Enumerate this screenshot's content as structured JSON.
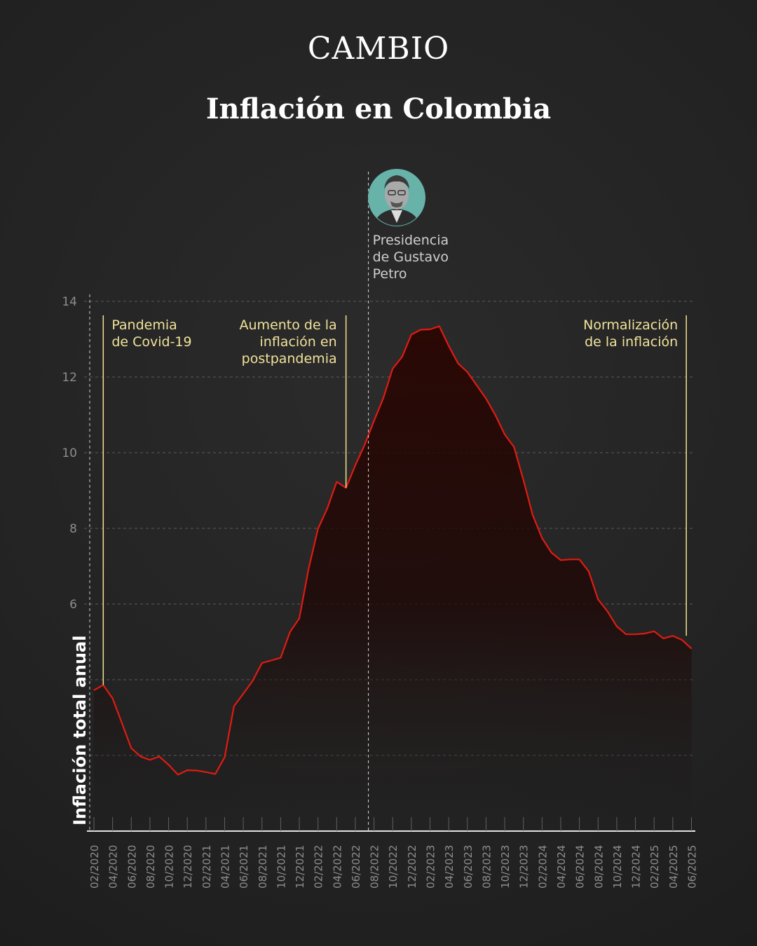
{
  "brand": "CAMBIO",
  "title": "Inflación en Colombia",
  "colors": {
    "background": "#242424",
    "line": "#e01b12",
    "annotation_line": "#f3e38c",
    "annotation_text": "#f1e29a",
    "tick_text": "#8d8d8d",
    "grid": "#5a5a5a",
    "avatar_bg": "#67b3aa"
  },
  "icons": {
    "petro_portrait": "portrait-icon"
  },
  "annotations": {
    "covid": [
      "Pandemia",
      "de Covid-19"
    ],
    "postpandemia": [
      "Aumento de la",
      "inflación en",
      "postpandemia"
    ],
    "normalizacion": [
      "Normalización",
      "de la inflación"
    ],
    "petro": [
      "Presidencia",
      "de Gustavo",
      "Petro"
    ]
  },
  "chart_data": {
    "type": "area",
    "title": "Inflación en Colombia",
    "xlabel": "",
    "ylabel": "Inflación total anual",
    "ylim": [
      0,
      14
    ],
    "grid": true,
    "yticks": [
      14,
      12,
      10,
      8,
      6
    ],
    "x_tick_labels": [
      "02/2020",
      "04/2020",
      "06/2020",
      "08/2020",
      "10/2020",
      "12/2020",
      "02/2021",
      "04/2021",
      "06/2021",
      "08/2021",
      "10/2021",
      "12/2021",
      "02/2022",
      "04/2022",
      "06/2022",
      "08/2022",
      "10/2022",
      "12/2022",
      "02/2023",
      "04/2023",
      "06/2023",
      "08/2023",
      "10/2023",
      "12/2023",
      "02/2024",
      "04/2024",
      "06/2024",
      "08/2024",
      "10/2024",
      "12/2024",
      "02/2025",
      "04/2025",
      "06/2025"
    ],
    "series": [
      {
        "x_start": "02/2020",
        "frequency": "monthly",
        "values": [
          3.72,
          3.86,
          3.51,
          2.85,
          2.19,
          1.97,
          1.88,
          1.97,
          1.75,
          1.49,
          1.61,
          1.6,
          1.56,
          1.51,
          1.95,
          3.3,
          3.63,
          3.97,
          4.44,
          4.51,
          4.58,
          5.26,
          5.62,
          6.94,
          7.99,
          8.53,
          9.23,
          9.07,
          9.67,
          10.21,
          10.84,
          11.44,
          12.22,
          12.53,
          13.12,
          13.25,
          13.26,
          13.34,
          12.82,
          12.36,
          12.13,
          11.78,
          11.43,
          10.99,
          10.48,
          10.15,
          9.28,
          8.35,
          7.74,
          7.36,
          7.16,
          7.18,
          7.18,
          6.86,
          6.12,
          5.81,
          5.41,
          5.2,
          5.2,
          5.22,
          5.28,
          5.09,
          5.16,
          5.05,
          4.82
        ]
      }
    ],
    "markers": [
      {
        "label": "Pandemia de Covid-19",
        "x": "03/2020"
      },
      {
        "label": "Aumento de la inflación en postpandemia",
        "x": "05/2022"
      },
      {
        "label": "Presidencia de Gustavo Petro",
        "x": "08/2022"
      },
      {
        "label": "Normalización de la inflación",
        "x": "05/2025"
      }
    ]
  }
}
